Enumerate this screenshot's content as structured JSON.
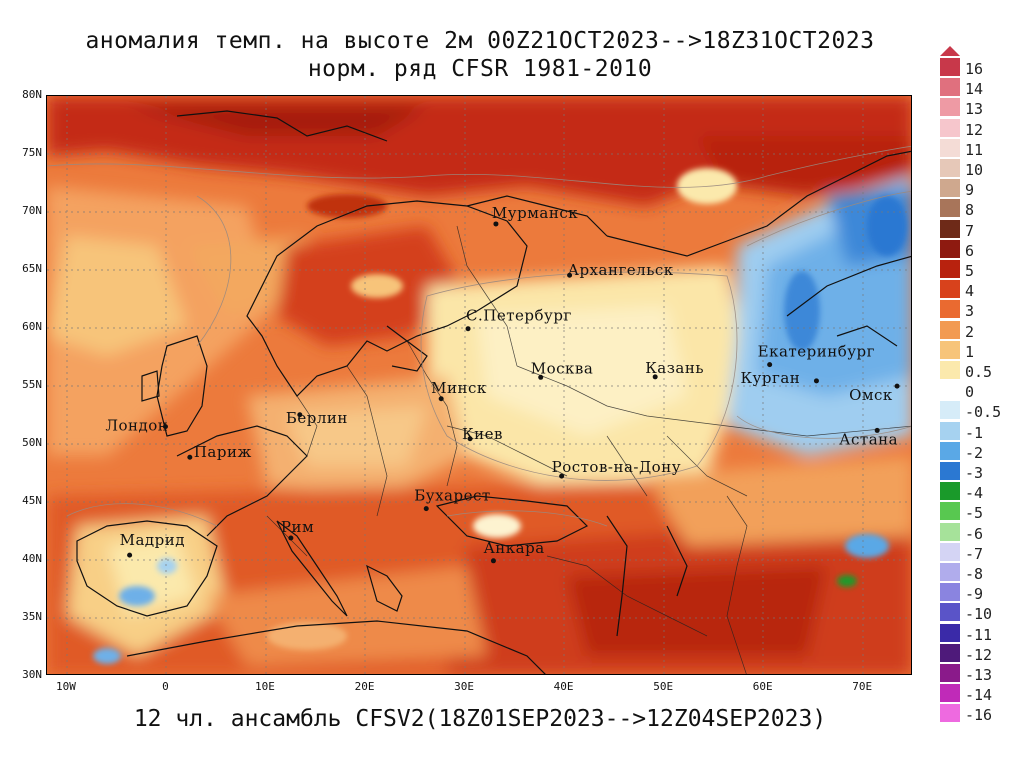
{
  "title_line1": "аномалия темп. на высоте 2м 00Z21OCT2023-->18Z31OCT2023",
  "title_line2": "норм. ряд CFSR 1981-2010",
  "bottom_title": "12 чл. ансамбль CFSV2(18Z01SEP2023-->12Z04SEP2023)",
  "lat_labels": [
    "80N",
    "75N",
    "70N",
    "65N",
    "60N",
    "55N",
    "50N",
    "45N",
    "40N",
    "35N",
    "30N"
  ],
  "lon_labels": [
    "10W",
    "0",
    "10E",
    "20E",
    "30E",
    "40E",
    "50E",
    "60E",
    "70E"
  ],
  "colorbar": {
    "labels": [
      "16",
      "14",
      "13",
      "12",
      "11",
      "10",
      "9",
      "8",
      "7",
      "6",
      "5",
      "4",
      "3",
      "2",
      "1",
      "0.5",
      "0",
      "-0.5",
      "-1",
      "-2",
      "-3",
      "-4",
      "-5",
      "-6",
      "-7",
      "-8",
      "-9",
      "-10",
      "-11",
      "-12",
      "-13",
      "-14",
      "-16"
    ],
    "colors": [
      "#c8384a",
      "#e0707e",
      "#ee9aa4",
      "#f6c6cc",
      "#f4dcd6",
      "#e6c8b8",
      "#cfa88e",
      "#a8755a",
      "#6e2a18",
      "#8e1a10",
      "#b8220e",
      "#d8421c",
      "#ea6a30",
      "#f29a52",
      "#f7c47a",
      "#fbe9ac",
      "#ffffff",
      "#d6ecf8",
      "#a6d2f0",
      "#5aa8e6",
      "#2b78d2",
      "#1a9a2a",
      "#58c850",
      "#a6e29a",
      "#d4d4f4",
      "#b0acec",
      "#8a84e0",
      "#5a54c8",
      "#3a2aa8",
      "#4e1a7a",
      "#8a1a8a",
      "#c02ab8",
      "#ee6ae0"
    ]
  },
  "cities": [
    {
      "name": "Мурманск",
      "lon": 33.1,
      "lat": 68.97
    },
    {
      "name": "Архангельск",
      "lon": 40.5,
      "lat": 64.55
    },
    {
      "name": "С.Петербург",
      "lon": 30.3,
      "lat": 59.94
    },
    {
      "name": "Москва",
      "lon": 37.6,
      "lat": 55.75
    },
    {
      "name": "Казань",
      "lon": 49.1,
      "lat": 55.79
    },
    {
      "name": "Екатеринбург",
      "lon": 60.6,
      "lat": 56.84
    },
    {
      "name": "Курган",
      "lon": 65.3,
      "lat": 55.44
    },
    {
      "name": "Омск",
      "lon": 73.4,
      "lat": 54.99
    },
    {
      "name": "Астана",
      "lon": 71.4,
      "lat": 51.17
    },
    {
      "name": "Минск",
      "lon": 27.6,
      "lat": 53.9
    },
    {
      "name": "Берлин",
      "lon": 13.4,
      "lat": 52.52
    },
    {
      "name": "Лондон",
      "lon": -0.1,
      "lat": 51.5
    },
    {
      "name": "Париж",
      "lon": 2.35,
      "lat": 48.86
    },
    {
      "name": "Киев",
      "lon": 30.5,
      "lat": 50.45
    },
    {
      "name": "Ростов-на-Дону",
      "lon": 39.7,
      "lat": 47.23
    },
    {
      "name": "Бухарест",
      "lon": 26.1,
      "lat": 44.43
    },
    {
      "name": "Рим",
      "lon": 12.5,
      "lat": 41.9
    },
    {
      "name": "Мадрид",
      "lon": -3.7,
      "lat": 40.42
    },
    {
      "name": "Анкара",
      "lon": 32.85,
      "lat": 39.93
    }
  ],
  "chart_data": {
    "type": "heatmap",
    "variable": "аномалия темп. на высоте 2м",
    "lon_range": [
      -12,
      75
    ],
    "lat_range": [
      30,
      80
    ],
    "color_scale": [
      "16",
      "14",
      "13",
      "12",
      "11",
      "10",
      "9",
      "8",
      "7",
      "6",
      "5",
      "4",
      "3",
      "2",
      "1",
      "0.5",
      "0",
      "-0.5",
      "-1",
      "-2",
      "-3",
      "-4",
      "-5",
      "-6",
      "-7",
      "-8",
      "-9",
      "-10",
      "-11",
      "-12",
      "-13",
      "-14",
      "-16"
    ],
    "regions": [
      {
        "area": "Arctic / Barents Sea",
        "anomaly_range": [
          3,
          6
        ]
      },
      {
        "area": "Western Siberia / Urals",
        "anomaly_range": [
          -2,
          -0.5
        ]
      },
      {
        "area": "Central European Russia",
        "anomaly_range": [
          0.5,
          2
        ]
      },
      {
        "area": "Southern Europe / Middle East",
        "anomaly_range": [
          2,
          5
        ]
      },
      {
        "area": "Scandinavia",
        "anomaly_range": [
          1,
          4
        ]
      }
    ]
  }
}
